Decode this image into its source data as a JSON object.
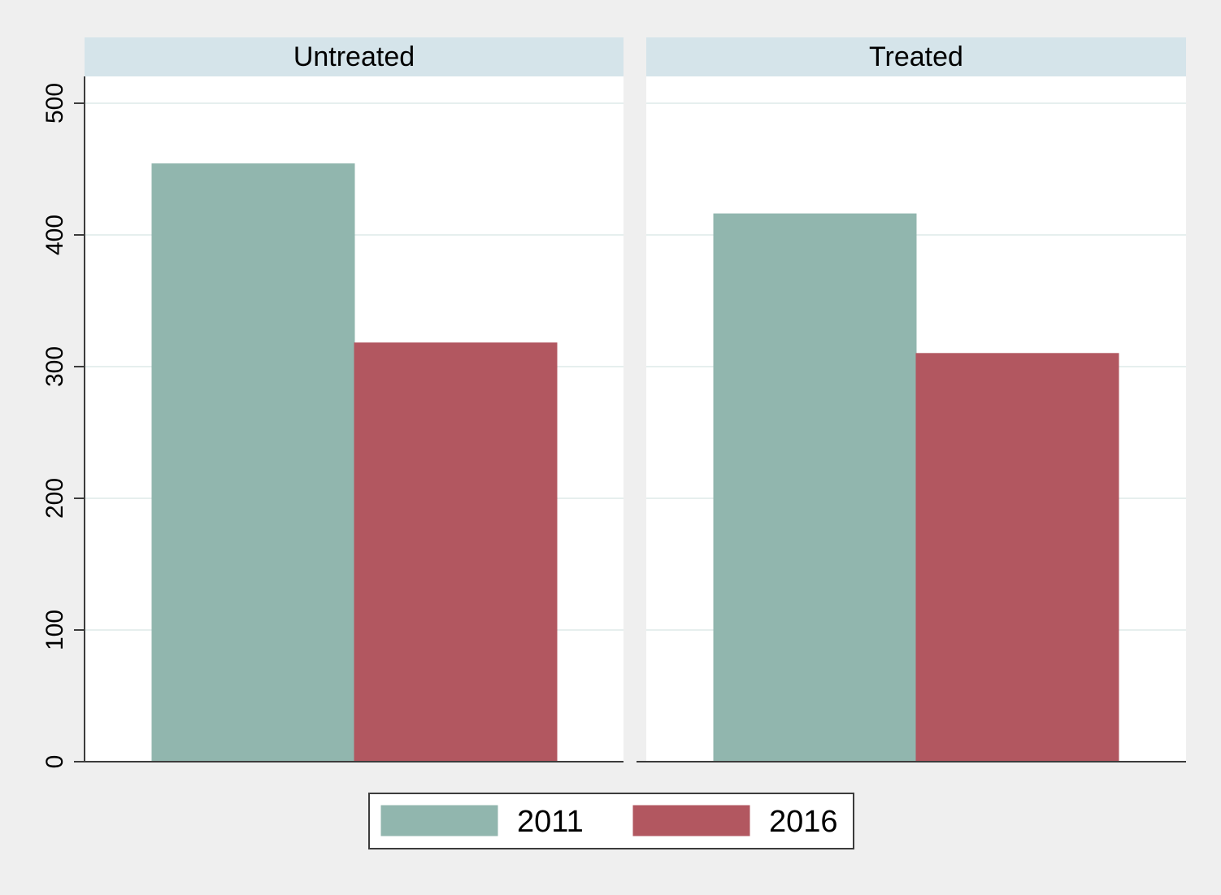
{
  "chart_data": {
    "type": "bar",
    "facets": [
      "Untreated",
      "Treated"
    ],
    "series": [
      {
        "name": "2011",
        "values": [
          454,
          416
        ],
        "color": "#91b6ae"
      },
      {
        "name": "2016",
        "values": [
          318,
          310
        ],
        "color": "#b25760"
      }
    ],
    "title": "",
    "xlabel": "",
    "ylabel": "",
    "ylim": [
      0,
      500
    ],
    "yticks": [
      0,
      100,
      200,
      300,
      400,
      500
    ],
    "grid": true,
    "legend_position": "bottom"
  },
  "colors": {
    "background": "#efefef",
    "plot_background": "#ffffff",
    "facet_header": "#d5e4ea",
    "gridline": "#e6efee",
    "axis": "#000000"
  }
}
